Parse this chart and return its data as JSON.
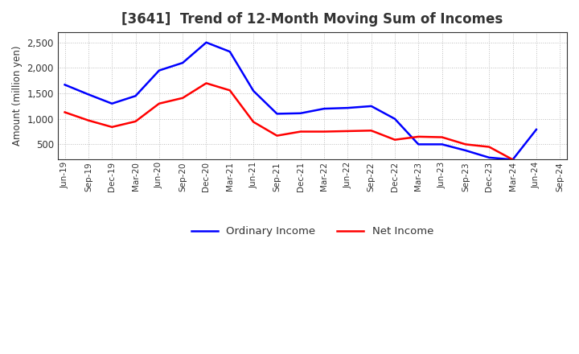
{
  "title": "[3641]  Trend of 12-Month Moving Sum of Incomes",
  "ylabel": "Amount (million yen)",
  "x_labels": [
    "Jun-19",
    "Sep-19",
    "Dec-19",
    "Mar-20",
    "Jun-20",
    "Sep-20",
    "Dec-20",
    "Mar-21",
    "Jun-21",
    "Sep-21",
    "Dec-21",
    "Mar-22",
    "Jun-22",
    "Sep-22",
    "Dec-22",
    "Mar-23",
    "Jun-23",
    "Sep-23",
    "Dec-23",
    "Mar-24",
    "Jun-24",
    "Sep-24"
  ],
  "ordinary_income": [
    1670,
    1480,
    1300,
    1450,
    1950,
    2100,
    2500,
    2320,
    1550,
    1100,
    1110,
    1200,
    1215,
    1250,
    1000,
    500,
    500,
    380,
    240,
    200,
    790,
    null
  ],
  "net_income": [
    1130,
    970,
    840,
    950,
    1300,
    1410,
    1700,
    1560,
    940,
    670,
    750,
    750,
    760,
    770,
    590,
    650,
    640,
    500,
    450,
    200,
    null,
    null
  ],
  "ordinary_color": "#0000FF",
  "net_color": "#FF0000",
  "bg_color": "#FFFFFF",
  "plot_bg_color": "#FFFFFF",
  "ylim": [
    200,
    2700
  ],
  "yticks": [
    500,
    1000,
    1500,
    2000,
    2500
  ],
  "grid_color": "#BBBBBB",
  "title_fontsize": 12,
  "title_color": "#333333",
  "legend_labels": [
    "Ordinary Income",
    "Net Income"
  ]
}
